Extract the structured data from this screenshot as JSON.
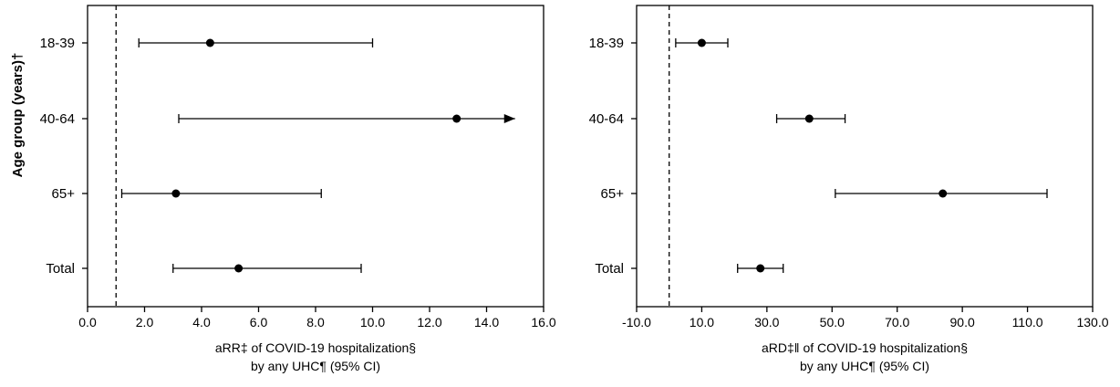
{
  "shared_ylabel": "Age group (years)†",
  "chart_data": [
    {
      "type": "forest",
      "categories": [
        "18-39",
        "40-64",
        "65+",
        "Total"
      ],
      "points": [
        {
          "category": "18-39",
          "estimate": 4.3,
          "lower": 1.8,
          "upper": 10.0,
          "upper_arrow": false
        },
        {
          "category": "40-64",
          "estimate": 12.95,
          "lower": 3.2,
          "upper": 15.0,
          "upper_arrow": true
        },
        {
          "category": "65+",
          "estimate": 3.1,
          "lower": 1.2,
          "upper": 8.2,
          "upper_arrow": false
        },
        {
          "category": "Total",
          "estimate": 5.3,
          "lower": 3.0,
          "upper": 9.6,
          "upper_arrow": false
        }
      ],
      "reference_line": 1.0,
      "xlim": [
        0,
        16
      ],
      "xticks": [
        "0.0",
        "2.0",
        "4.0",
        "6.0",
        "8.0",
        "10.0",
        "12.0",
        "14.0",
        "16.0"
      ],
      "xlabel_line1": "aRR‡ of COVID-19 hospitalization§",
      "xlabel_line2": "by any UHC¶ (95% CI)",
      "grid": false
    },
    {
      "type": "forest",
      "categories": [
        "18-39",
        "40-64",
        "65+",
        "Total"
      ],
      "points": [
        {
          "category": "18-39",
          "estimate": 10.0,
          "lower": 2.0,
          "upper": 18.0,
          "upper_arrow": false
        },
        {
          "category": "40-64",
          "estimate": 43.0,
          "lower": 33.0,
          "upper": 54.0,
          "upper_arrow": false
        },
        {
          "category": "65+",
          "estimate": 84.0,
          "lower": 51.0,
          "upper": 116.0,
          "upper_arrow": false
        },
        {
          "category": "Total",
          "estimate": 28.0,
          "lower": 21.0,
          "upper": 35.0,
          "upper_arrow": false
        }
      ],
      "reference_line": 0.0,
      "xlim": [
        -10,
        130
      ],
      "xticks": [
        "-10.0",
        "10.0",
        "30.0",
        "50.0",
        "70.0",
        "90.0",
        "110.0",
        "130.0"
      ],
      "xlabel_line1": "aRD‡ǁ of COVID-19 hospitalization§",
      "xlabel_line2": "by any UHC¶ (95% CI)",
      "grid": false
    }
  ]
}
